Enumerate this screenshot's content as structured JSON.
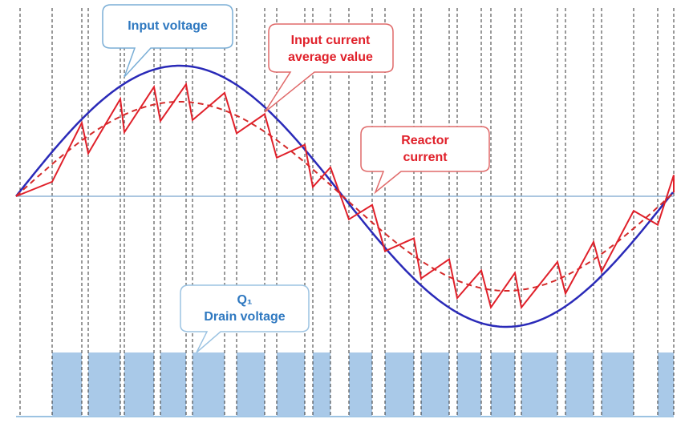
{
  "callouts": {
    "input_voltage": {
      "lines": [
        "Input voltage"
      ]
    },
    "input_current_average": {
      "lines": [
        "Input current",
        "average value"
      ]
    },
    "reactor_current": {
      "lines": [
        "Reactor",
        "current"
      ]
    },
    "drain_voltage": {
      "lines": [
        "Q₁",
        "Drain voltage"
      ]
    }
  }
}
